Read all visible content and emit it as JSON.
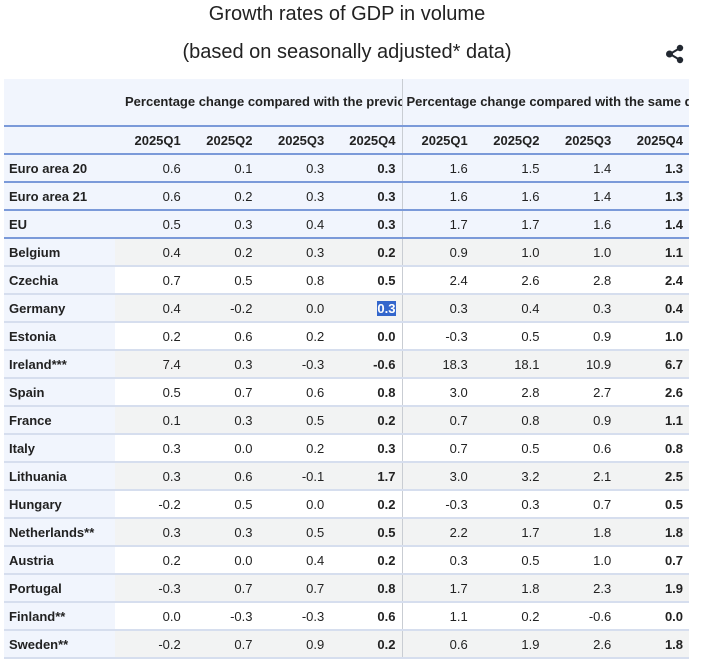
{
  "title": "Growth rates of GDP in volume",
  "subtitle": "(based on seasonally adjusted* data)",
  "share_icon": "share-icon",
  "table": {
    "group_headers": [
      "Percentage change compared with the previous quarter",
      "Percentage change compared with the same quarter of the previous year"
    ],
    "quarters": [
      "2025Q1",
      "2025Q2",
      "2025Q3",
      "2025Q4",
      "2025Q1",
      "2025Q2",
      "2025Q3",
      "2025Q4"
    ],
    "selected_cell": {
      "row": "Germany",
      "column": "previous quarter 2025Q4",
      "value": "0.3"
    },
    "rows": [
      {
        "name": "Euro area 20",
        "qoq": [
          "0.6",
          "0.1",
          "0.3",
          "0.3"
        ],
        "yoy": [
          "1.6",
          "1.5",
          "1.4",
          "1.3"
        ]
      },
      {
        "name": "Euro area 21",
        "qoq": [
          "0.6",
          "0.2",
          "0.3",
          "0.3"
        ],
        "yoy": [
          "1.6",
          "1.6",
          "1.4",
          "1.3"
        ]
      },
      {
        "name": "EU",
        "qoq": [
          "0.5",
          "0.3",
          "0.4",
          "0.3"
        ],
        "yoy": [
          "1.7",
          "1.7",
          "1.6",
          "1.4"
        ]
      },
      {
        "name": "Belgium",
        "qoq": [
          "0.4",
          "0.2",
          "0.3",
          "0.2"
        ],
        "yoy": [
          "0.9",
          "1.0",
          "1.0",
          "1.1"
        ]
      },
      {
        "name": "Czechia",
        "qoq": [
          "0.7",
          "0.5",
          "0.8",
          "0.5"
        ],
        "yoy": [
          "2.4",
          "2.6",
          "2.8",
          "2.4"
        ]
      },
      {
        "name": "Germany",
        "qoq": [
          "0.4",
          "-0.2",
          "0.0",
          "0.3"
        ],
        "yoy": [
          "0.3",
          "0.4",
          "0.3",
          "0.4"
        ]
      },
      {
        "name": "Estonia",
        "qoq": [
          "0.2",
          "0.6",
          "0.2",
          "0.0"
        ],
        "yoy": [
          "-0.3",
          "0.5",
          "0.9",
          "1.0"
        ]
      },
      {
        "name": "Ireland***",
        "qoq": [
          "7.4",
          "0.3",
          "-0.3",
          "-0.6"
        ],
        "yoy": [
          "18.3",
          "18.1",
          "10.9",
          "6.7"
        ]
      },
      {
        "name": "Spain",
        "qoq": [
          "0.5",
          "0.7",
          "0.6",
          "0.8"
        ],
        "yoy": [
          "3.0",
          "2.8",
          "2.7",
          "2.6"
        ]
      },
      {
        "name": "France",
        "qoq": [
          "0.1",
          "0.3",
          "0.5",
          "0.2"
        ],
        "yoy": [
          "0.7",
          "0.8",
          "0.9",
          "1.1"
        ]
      },
      {
        "name": "Italy",
        "qoq": [
          "0.3",
          "0.0",
          "0.2",
          "0.3"
        ],
        "yoy": [
          "0.7",
          "0.5",
          "0.6",
          "0.8"
        ]
      },
      {
        "name": "Lithuania",
        "qoq": [
          "0.3",
          "0.6",
          "-0.1",
          "1.7"
        ],
        "yoy": [
          "3.0",
          "3.2",
          "2.1",
          "2.5"
        ]
      },
      {
        "name": "Hungary",
        "qoq": [
          "-0.2",
          "0.5",
          "0.0",
          "0.2"
        ],
        "yoy": [
          "-0.3",
          "0.3",
          "0.7",
          "0.5"
        ]
      },
      {
        "name": "Netherlands**",
        "qoq": [
          "0.3",
          "0.3",
          "0.5",
          "0.5"
        ],
        "yoy": [
          "2.2",
          "1.7",
          "1.8",
          "1.8"
        ]
      },
      {
        "name": "Austria",
        "qoq": [
          "0.2",
          "0.0",
          "0.4",
          "0.2"
        ],
        "yoy": [
          "0.3",
          "0.5",
          "1.0",
          "0.7"
        ]
      },
      {
        "name": "Portugal",
        "qoq": [
          "-0.3",
          "0.7",
          "0.7",
          "0.8"
        ],
        "yoy": [
          "1.7",
          "1.8",
          "2.3",
          "1.9"
        ]
      },
      {
        "name": "Finland**",
        "qoq": [
          "0.0",
          "-0.3",
          "-0.3",
          "0.6"
        ],
        "yoy": [
          "1.1",
          "0.2",
          "-0.6",
          "0.0"
        ]
      },
      {
        "name": "Sweden**",
        "qoq": [
          "-0.2",
          "0.7",
          "0.9",
          "0.2"
        ],
        "yoy": [
          "0.6",
          "1.9",
          "2.6",
          "1.8"
        ]
      }
    ]
  }
}
